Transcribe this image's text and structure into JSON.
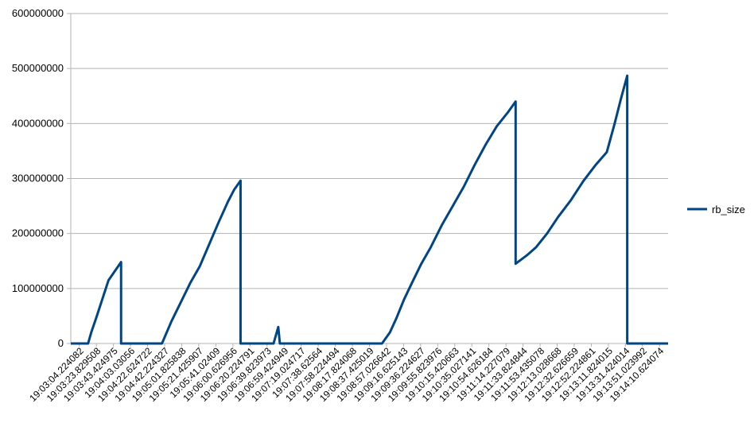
{
  "chart_data": {
    "type": "line",
    "title": "",
    "xlabel": "",
    "ylabel": "",
    "ylim": [
      0,
      600000000
    ],
    "yticks": [
      0,
      100000000,
      200000000,
      300000000,
      400000000,
      500000000,
      600000000
    ],
    "ytick_labels": [
      "0",
      "100000000",
      "200000000",
      "300000000",
      "400000000",
      "500000000",
      "600000000"
    ],
    "grid": true,
    "legend_position": "right",
    "x_category_count": 381,
    "xtick_labels": [
      "19:03:04.224082",
      "19:03:23.829508",
      "19:03:43.424975",
      "19:04:03.03056",
      "19:04:22.624722",
      "19:04:42.224327",
      "19:05:01.825838",
      "19:05:21.425907",
      "19:05:41.02409",
      "19:06:00.626956",
      "19:06:20.224791",
      "19:06:39.823973",
      "19:06:59.424949",
      "19:07:19.024717",
      "19:07:38.62564",
      "19:07:58.224494",
      "19:08:17.824068",
      "19:08:37.425019",
      "19:08:57.026642",
      "19:09:16.625143",
      "19:09:36.224627",
      "19:09:55.823976",
      "19:10:15.420663",
      "19:10:35.027141",
      "19:10:54.626184",
      "19:11:14.227079",
      "19:11:33.824844",
      "19:11:53.435078",
      "19:12:13.028668",
      "19:12:32.626659",
      "19:12:52.224861",
      "19:13:11.824015",
      "19:13:31.424014",
      "19:13:51.023992",
      "19:14:10.624074"
    ],
    "series": [
      {
        "name": "rb_size",
        "color": "#004586",
        "points": [
          [
            0,
            0
          ],
          [
            11,
            0
          ],
          [
            13,
            20000000
          ],
          [
            16,
            45000000
          ],
          [
            20,
            80000000
          ],
          [
            24,
            115000000
          ],
          [
            32,
            148000000
          ],
          [
            32,
            0
          ],
          [
            58,
            0
          ],
          [
            64,
            40000000
          ],
          [
            70,
            75000000
          ],
          [
            76,
            110000000
          ],
          [
            82,
            140000000
          ],
          [
            88,
            180000000
          ],
          [
            94,
            220000000
          ],
          [
            100,
            258000000
          ],
          [
            104,
            280000000
          ],
          [
            108,
            296000000
          ],
          [
            108,
            0
          ],
          [
            129,
            0
          ],
          [
            132,
            30000000
          ],
          [
            133,
            0
          ],
          [
            198,
            0
          ],
          [
            203,
            20000000
          ],
          [
            207,
            45000000
          ],
          [
            212,
            80000000
          ],
          [
            217,
            110000000
          ],
          [
            223,
            145000000
          ],
          [
            229,
            175000000
          ],
          [
            236,
            215000000
          ],
          [
            243,
            250000000
          ],
          [
            250,
            285000000
          ],
          [
            257,
            325000000
          ],
          [
            264,
            362000000
          ],
          [
            271,
            395000000
          ],
          [
            278,
            420000000
          ],
          [
            283,
            440000000
          ],
          [
            283,
            145000000
          ],
          [
            290,
            160000000
          ],
          [
            296,
            175000000
          ],
          [
            303,
            200000000
          ],
          [
            310,
            230000000
          ],
          [
            318,
            260000000
          ],
          [
            326,
            295000000
          ],
          [
            334,
            325000000
          ],
          [
            341,
            348000000
          ],
          [
            346,
            400000000
          ],
          [
            350,
            445000000
          ],
          [
            354,
            487000000
          ],
          [
            354,
            0
          ],
          [
            380,
            0
          ]
        ]
      }
    ]
  }
}
